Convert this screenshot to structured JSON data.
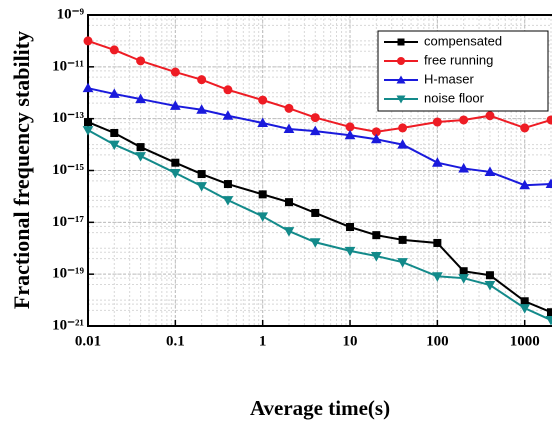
{
  "chart_data": {
    "type": "line",
    "x_label": "Average time(s)",
    "y_label": "Fractional frequency stability",
    "log_x": true,
    "log_y": true,
    "grid": true,
    "legend_position": "upper right",
    "x": [
      0.01,
      0.02,
      0.04,
      0.1,
      0.2,
      0.4,
      1,
      2,
      4,
      10,
      20,
      40,
      100,
      200,
      400,
      1000,
      2000
    ],
    "xlim": [
      0.01,
      2000
    ],
    "xticks": [
      0.01,
      0.1,
      1,
      10,
      100,
      1000
    ],
    "ylim": [
      1e-21,
      1e-09
    ],
    "yticks": [
      {
        "value": 1e-21,
        "label": "10⁻²¹"
      },
      {
        "value": 1e-19,
        "label": "10⁻¹⁹"
      },
      {
        "value": 1e-17,
        "label": "10⁻¹⁷"
      },
      {
        "value": 1e-15,
        "label": "10⁻¹⁵"
      },
      {
        "value": 1e-13,
        "label": "10⁻¹³"
      },
      {
        "value": 1e-11,
        "label": "10⁻¹¹"
      },
      {
        "value": 1e-09,
        "label": "10⁻⁹"
      }
    ],
    "series": [
      {
        "name": "compensated",
        "color": "#000000",
        "marker": "square",
        "values": [
          7.4e-14,
          2.8e-14,
          8e-15,
          2e-15,
          7.3e-16,
          3e-16,
          1.2e-16,
          6e-17,
          2.3e-17,
          6.6e-18,
          3.2e-18,
          2.1e-18,
          1.6e-18,
          1.3e-19,
          9.1e-20,
          9e-21,
          3.4e-21
        ]
      },
      {
        "name": "free running",
        "color": "#ee1c24",
        "marker": "circle",
        "values": [
          1e-10,
          4.5e-11,
          1.7e-11,
          6.3e-12,
          3.2e-12,
          1.3e-12,
          5.2e-13,
          2.5e-13,
          1.1e-13,
          4.8e-14,
          3.1e-14,
          4.4e-14,
          7.4e-14,
          8.9e-14,
          1.3e-13,
          4.4e-14,
          8.9e-14
        ]
      },
      {
        "name": "H-maser",
        "color": "#1a1adc",
        "marker": "triangle-up",
        "values": [
          1.5e-12,
          9e-13,
          5.7e-13,
          3.1e-13,
          2.2e-13,
          1.3e-13,
          6.8e-14,
          4e-14,
          3.3e-14,
          2.3e-14,
          1.6e-14,
          1e-14,
          2e-15,
          1.2e-15,
          8.8e-16,
          2.7e-16,
          3e-16
        ]
      },
      {
        "name": "noise floor",
        "color": "#138a8a",
        "marker": "triangle-down",
        "values": [
          3.6e-14,
          1e-14,
          3.6e-15,
          8e-16,
          2.5e-16,
          7.2e-17,
          1.7e-17,
          4.6e-18,
          1.7e-18,
          7.9e-19,
          5e-19,
          2.9e-19,
          8.3e-20,
          7e-20,
          3.8e-20,
          4.9e-21,
          1.7e-21
        ]
      }
    ]
  }
}
